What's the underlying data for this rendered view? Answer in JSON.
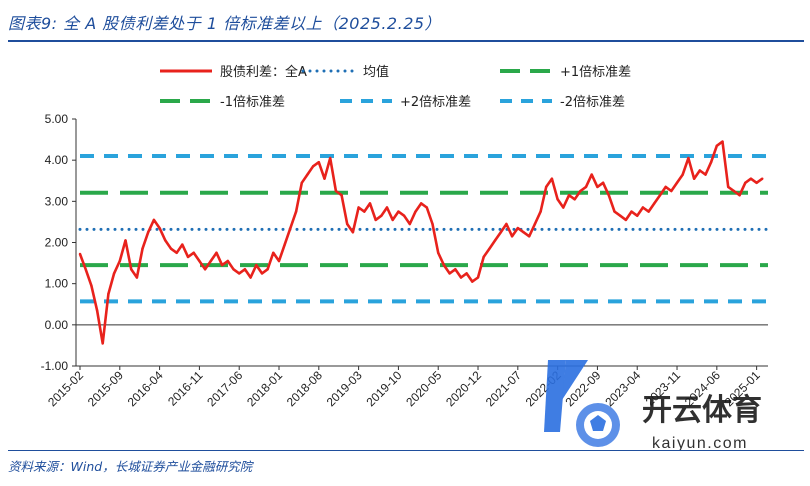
{
  "figure": {
    "title": "图表9:  全 A 股债利差处于 1 倍标准差以上（2025.2.25）",
    "source": "资料来源：Wind，长城证券产业金融研究院"
  },
  "watermark": {
    "brand": "开云体育",
    "domain": "kaiyun.com"
  },
  "colors": {
    "spread": "#e8221c",
    "mean": "#1f6fb5",
    "plus1": "#2aa84a",
    "minus1": "#2aa84a",
    "plus2": "#2aa3dc",
    "minus2": "#2aa3dc",
    "title": "#1f4e9c"
  },
  "chart_data": {
    "type": "line",
    "title": "",
    "xlabel": "",
    "ylabel": "",
    "ylim": [
      -1.0,
      5.0
    ],
    "yticks": [
      "5.00",
      "4.00",
      "3.00",
      "2.00",
      "1.00",
      "0.00",
      "-1.00"
    ],
    "ytick_values": [
      5,
      4,
      3,
      2,
      1,
      0,
      -1
    ],
    "xticks": [
      "2015-02",
      "2015-09",
      "2016-04",
      "2016-11",
      "2017-06",
      "2018-01",
      "2018-08",
      "2019-03",
      "2019-10",
      "2020-05",
      "2020-12",
      "2021-07",
      "2022-02",
      "2022-09",
      "2023-04",
      "2023-11",
      "2024-06",
      "2025-01"
    ],
    "grid": false,
    "legend_position": "top",
    "reference_lines": [
      {
        "name": "均值",
        "value": 2.32,
        "style": "dotted"
      },
      {
        "name": "+1倍标准差",
        "value": 3.21,
        "style": "dashed"
      },
      {
        "name": "-1倍标准差",
        "value": 1.45,
        "style": "dashed"
      },
      {
        "name": "+2倍标准差",
        "value": 4.1,
        "style": "dashed"
      },
      {
        "name": "-2倍标准差",
        "value": 0.57,
        "style": "dashed"
      }
    ],
    "series": [
      {
        "name": "股债利差：全A",
        "x": [
          "2015-02",
          "2015-03",
          "2015-04",
          "2015-05",
          "2015-06",
          "2015-07",
          "2015-08",
          "2015-09",
          "2015-10",
          "2015-11",
          "2015-12",
          "2016-01",
          "2016-02",
          "2016-03",
          "2016-04",
          "2016-05",
          "2016-06",
          "2016-07",
          "2016-08",
          "2016-09",
          "2016-10",
          "2016-11",
          "2016-12",
          "2017-01",
          "2017-02",
          "2017-03",
          "2017-04",
          "2017-05",
          "2017-06",
          "2017-07",
          "2017-08",
          "2017-09",
          "2017-10",
          "2017-11",
          "2017-12",
          "2018-01",
          "2018-02",
          "2018-03",
          "2018-04",
          "2018-05",
          "2018-06",
          "2018-07",
          "2018-08",
          "2018-09",
          "2018-10",
          "2018-11",
          "2018-12",
          "2019-01",
          "2019-02",
          "2019-03",
          "2019-04",
          "2019-05",
          "2019-06",
          "2019-07",
          "2019-08",
          "2019-09",
          "2019-10",
          "2019-11",
          "2019-12",
          "2020-01",
          "2020-02",
          "2020-03",
          "2020-04",
          "2020-05",
          "2020-06",
          "2020-07",
          "2020-08",
          "2020-09",
          "2020-10",
          "2020-11",
          "2020-12",
          "2021-01",
          "2021-02",
          "2021-03",
          "2021-04",
          "2021-05",
          "2021-06",
          "2021-07",
          "2021-08",
          "2021-09",
          "2021-10",
          "2021-11",
          "2021-12",
          "2022-01",
          "2022-02",
          "2022-03",
          "2022-04",
          "2022-05",
          "2022-06",
          "2022-07",
          "2022-08",
          "2022-09",
          "2022-10",
          "2022-11",
          "2022-12",
          "2023-01",
          "2023-02",
          "2023-03",
          "2023-04",
          "2023-05",
          "2023-06",
          "2023-07",
          "2023-08",
          "2023-09",
          "2023-10",
          "2023-11",
          "2023-12",
          "2024-01",
          "2024-02",
          "2024-03",
          "2024-04",
          "2024-05",
          "2024-06",
          "2024-07",
          "2024-08",
          "2024-09",
          "2024-10",
          "2024-11",
          "2024-12",
          "2025-01",
          "2025-02"
        ],
        "values": [
          1.72,
          1.35,
          0.95,
          0.35,
          -0.45,
          0.75,
          1.25,
          1.55,
          2.05,
          1.35,
          1.15,
          1.85,
          2.25,
          2.55,
          2.35,
          2.05,
          1.85,
          1.75,
          1.95,
          1.65,
          1.75,
          1.55,
          1.35,
          1.55,
          1.75,
          1.45,
          1.55,
          1.35,
          1.25,
          1.35,
          1.15,
          1.45,
          1.25,
          1.35,
          1.75,
          1.55,
          1.95,
          2.35,
          2.75,
          3.45,
          3.65,
          3.85,
          3.95,
          3.55,
          4.05,
          3.25,
          3.15,
          2.45,
          2.25,
          2.85,
          2.75,
          2.95,
          2.55,
          2.65,
          2.85,
          2.55,
          2.75,
          2.65,
          2.45,
          2.75,
          2.95,
          2.85,
          2.45,
          1.75,
          1.45,
          1.25,
          1.35,
          1.15,
          1.25,
          1.05,
          1.15,
          1.65,
          1.85,
          2.05,
          2.25,
          2.45,
          2.15,
          2.35,
          2.25,
          2.15,
          2.45,
          2.75,
          3.35,
          3.55,
          3.05,
          2.85,
          3.15,
          3.05,
          3.25,
          3.35,
          3.65,
          3.35,
          3.45,
          3.15,
          2.75,
          2.65,
          2.55,
          2.75,
          2.65,
          2.85,
          2.75,
          2.95,
          3.15,
          3.35,
          3.25,
          3.45,
          3.65,
          4.05,
          3.55,
          3.75,
          3.65,
          3.95,
          4.35,
          4.45,
          3.35,
          3.25,
          3.15,
          3.45,
          3.55,
          3.45,
          3.55
        ]
      }
    ]
  },
  "legend": [
    {
      "label": "股债利差：全A",
      "key": "spread",
      "style": "solid"
    },
    {
      "label": "均值",
      "key": "mean",
      "style": "dotted"
    },
    {
      "label": "+1倍标准差",
      "key": "plus1",
      "style": "dashed"
    },
    {
      "label": "-1倍标准差",
      "key": "minus1",
      "style": "dashed"
    },
    {
      "label": "+2倍标准差",
      "key": "plus2",
      "style": "dashed"
    },
    {
      "label": "-2倍标准差",
      "key": "minus2",
      "style": "dashed"
    }
  ]
}
